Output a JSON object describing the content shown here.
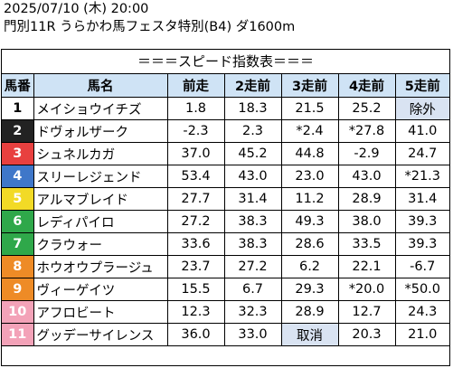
{
  "header": {
    "line1": "2025/07/10 (木) 20:00",
    "line2": "門別11R うらかわ馬フェスタ特別(B4) ダ1600m"
  },
  "banner": "＝＝＝スピード指数表＝＝＝",
  "columns": [
    "馬番",
    "馬名",
    "前走",
    "2走前",
    "3走前",
    "4走前",
    "5走前"
  ],
  "rows": [
    {
      "num": "1",
      "bg": "#ffffff",
      "fg": "#000000",
      "name": "メイショウイチズ",
      "vals": [
        "1.8",
        "18.3",
        "21.5",
        "25.2",
        "除外"
      ]
    },
    {
      "num": "2",
      "bg": "#222222",
      "fg": "#ffffff",
      "name": "ドヴォルザーク",
      "vals": [
        "-2.3",
        "2.3",
        "*2.4",
        "*27.8",
        "41.0"
      ]
    },
    {
      "num": "3",
      "bg": "#e8403f",
      "fg": "#ffffff",
      "name": "シュネルカガ",
      "vals": [
        "37.0",
        "45.2",
        "44.8",
        "-2.9",
        "24.7"
      ]
    },
    {
      "num": "4",
      "bg": "#3f77c9",
      "fg": "#ffffff",
      "name": "スリーレジェンド",
      "vals": [
        "53.4",
        "43.0",
        "23.0",
        "43.0",
        "*21.3"
      ]
    },
    {
      "num": "5",
      "bg": "#f2da26",
      "fg": "#ffffff",
      "name": "アルマブレイド",
      "vals": [
        "27.7",
        "31.4",
        "11.2",
        "28.9",
        "31.4"
      ]
    },
    {
      "num": "6",
      "bg": "#2fa84a",
      "fg": "#ffffff",
      "name": "レディパイロ",
      "vals": [
        "27.2",
        "38.3",
        "49.3",
        "38.0",
        "39.3"
      ]
    },
    {
      "num": "7",
      "bg": "#2fa84a",
      "fg": "#ffffff",
      "name": "クラウォー",
      "vals": [
        "33.6",
        "38.3",
        "28.6",
        "33.5",
        "39.3"
      ]
    },
    {
      "num": "8",
      "bg": "#ee8b26",
      "fg": "#ffffff",
      "name": "ホウオウプラージュ",
      "vals": [
        "23.7",
        "27.2",
        "6.2",
        "22.1",
        "-6.7"
      ]
    },
    {
      "num": "9",
      "bg": "#ee8b26",
      "fg": "#ffffff",
      "name": "ヴィーゲイツ",
      "vals": [
        "15.5",
        "6.7",
        "29.3",
        "*20.0",
        "*50.0"
      ]
    },
    {
      "num": "10",
      "bg": "#f3a2b8",
      "fg": "#ffffff",
      "name": "アフロビート",
      "vals": [
        "12.3",
        "32.3",
        "28.9",
        "12.7",
        "24.3"
      ]
    },
    {
      "num": "11",
      "bg": "#f3a2b8",
      "fg": "#ffffff",
      "name": "グッデーサイレンス",
      "vals": [
        "36.0",
        "33.0",
        "取消",
        "20.3",
        "21.0"
      ]
    }
  ],
  "colors": {
    "header_bg": "#cfe3f5",
    "status_cell_bg": "#d9e3f2"
  }
}
